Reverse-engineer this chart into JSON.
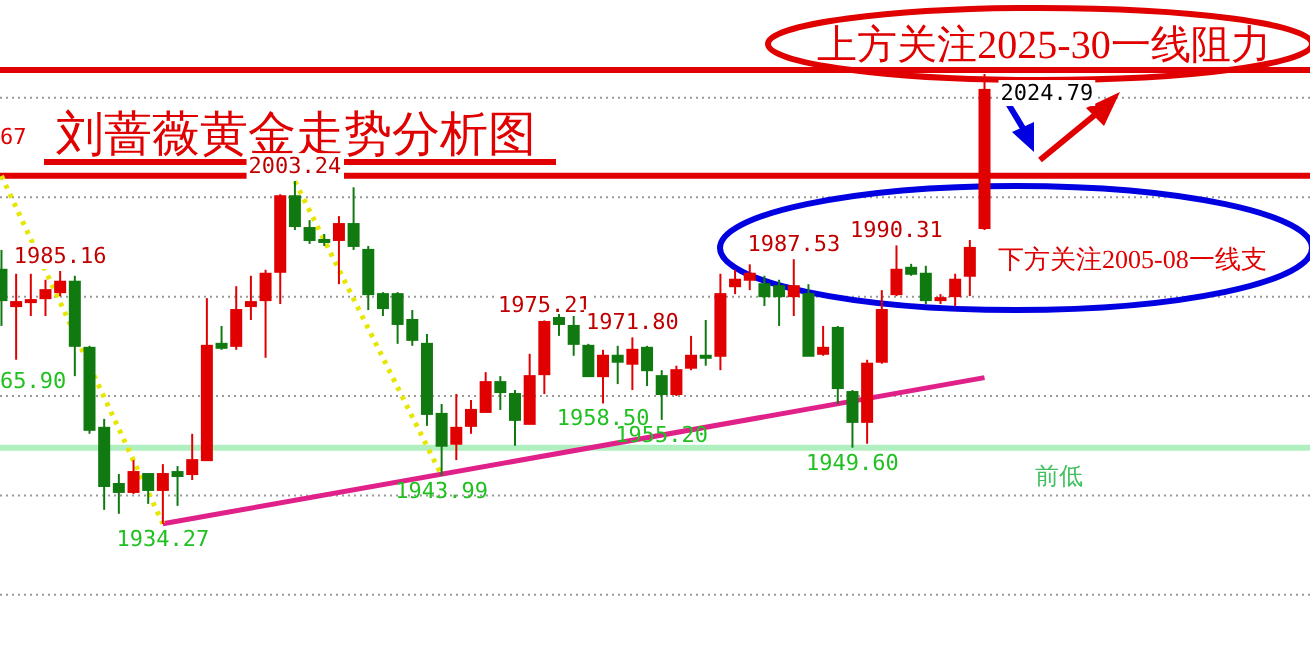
{
  "chart_data": {
    "type": "candlestick",
    "title": "刘蔷薇黄金走势分析图",
    "categories": [
      null,
      null,
      null,
      null,
      null,
      null,
      null,
      null,
      null,
      null,
      null,
      null,
      null,
      null,
      null,
      null,
      null,
      null,
      null,
      null,
      null,
      null,
      null,
      null,
      null,
      null,
      null,
      null,
      null,
      null,
      null,
      null,
      null,
      null,
      null,
      null,
      null,
      null,
      null,
      null,
      null,
      null,
      null,
      null,
      null,
      null,
      null,
      null,
      null,
      null,
      null,
      null,
      null,
      null,
      null,
      null,
      null,
      null,
      null,
      null,
      null,
      null,
      null,
      null,
      null,
      null,
      null,
      null
    ],
    "yticks": [
      {
        "value": 1920,
        "label": null
      },
      {
        "value": 1940,
        "label": null
      },
      {
        "value": 1960,
        "label": null
      },
      {
        "value": 1980,
        "label": null
      },
      {
        "value": 2000,
        "label": null
      },
      {
        "value": 2020,
        "label": null
      }
    ],
    "grid": "y",
    "ohlc": [
      [
        1985.4,
        1989.4,
        1974.1,
        1979.3
      ],
      [
        1978.1,
        1984.6,
        1967.3,
        1978.9
      ],
      [
        1978.9,
        1984.6,
        1976.1,
        1979.3
      ],
      [
        1979.7,
        1983.4,
        1976.1,
        1981.3
      ],
      [
        1980.9,
        1985.16,
        1980.1,
        1983.0
      ],
      [
        1983.0,
        1984.2,
        1964.0,
        1970.1
      ],
      [
        1969.7,
        1970.1,
        1952.4,
        1953.2
      ],
      [
        1953.6,
        1955.4,
        1937.1,
        1941.9
      ],
      [
        1942.3,
        1944.3,
        1936.3,
        1940.7
      ],
      [
        1940.7,
        1947.1,
        1940.3,
        1944.7
      ],
      [
        1944.3,
        1944.3,
        1938.3,
        1941.1
      ],
      [
        1941.1,
        1946.3,
        1934.27,
        1944.3
      ],
      [
        1944.7,
        1945.9,
        1937.9,
        1943.9
      ],
      [
        1944.3,
        1952.4,
        1943.1,
        1947.1
      ],
      [
        1947.1,
        1979.7,
        1947.1,
        1970.1
      ],
      [
        1970.5,
        1974.1,
        1969.3,
        1969.7
      ],
      [
        1970.1,
        1982.1,
        1969.3,
        1977.3
      ],
      [
        1978.1,
        1984.2,
        1975.3,
        1978.9
      ],
      [
        1979.3,
        1985.4,
        1967.7,
        1984.6
      ],
      [
        1985.0,
        2000.6,
        1978.5,
        2000.2
      ],
      [
        2000.2,
        2003.24,
        1993.4,
        1994.2
      ],
      [
        1993.8,
        1995.4,
        1990.6,
        1991.4
      ],
      [
        1991.4,
        1992.6,
        1990.2,
        1991.0
      ],
      [
        1991.4,
        1996.2,
        1982.5,
        1994.6
      ],
      [
        1994.6,
        2002.0,
        1989.4,
        1990.2
      ],
      [
        1989.4,
        1990.2,
        1977.3,
        1980.5
      ],
      [
        1980.5,
        1980.9,
        1976.1,
        1977.7
      ],
      [
        1980.5,
        1980.9,
        1970.5,
        1974.5
      ],
      [
        1975.3,
        1977.3,
        1970.1,
        1971.3
      ],
      [
        1970.5,
        1972.5,
        1954.0,
        1956.4
      ],
      [
        1956.4,
        1958.4,
        1943.99,
        1950.0
      ],
      [
        1950.4,
        1960.4,
        1947.1,
        1953.6
      ],
      [
        1954.0,
        1959.2,
        1952.4,
        1957.2
      ],
      [
        1956.8,
        1964.8,
        1956.8,
        1962.8
      ],
      [
        1962.8,
        1964.0,
        1957.2,
        1960.8
      ],
      [
        1960.4,
        1961.2,
        1950.0,
        1955.2
      ],
      [
        1954.4,
        1968.5,
        1954.4,
        1964.0
      ],
      [
        1964.4,
        1975.21,
        1960.4,
        1974.9
      ],
      [
        1975.7,
        1976.5,
        1972.1,
        1974.5
      ],
      [
        1974.1,
        1976.1,
        1968.1,
        1970.5
      ],
      [
        1970.1,
        1970.5,
        1964.0,
        1964.0
      ],
      [
        1964.0,
        1969.3,
        1958.5,
        1968.1
      ],
      [
        1968.1,
        1970.1,
        1962.4,
        1966.9
      ],
      [
        1966.5,
        1971.8,
        1961.2,
        1969.3
      ],
      [
        1969.7,
        1970.1,
        1962.0,
        1965.2
      ],
      [
        1964.0,
        1965.2,
        1955.2,
        1960.4
      ],
      [
        1960.4,
        1966.1,
        1960.0,
        1965.2
      ],
      [
        1965.7,
        1972.1,
        1965.2,
        1968.1
      ],
      [
        1968.1,
        1975.3,
        1966.1,
        1967.7
      ],
      [
        1968.1,
        1984.6,
        1965.2,
        1980.5
      ],
      [
        1982.1,
        1985.4,
        1980.5,
        1983.4
      ],
      [
        1983.4,
        1986.5,
        1981.3,
        1984.6
      ],
      [
        1982.5,
        1984.2,
        1978.1,
        1980.1
      ],
      [
        1982.1,
        1983.4,
        1974.1,
        1980.1
      ],
      [
        1980.1,
        1987.53,
        1976.1,
        1982.1
      ],
      [
        1980.5,
        1982.5,
        1968.1,
        1968.1
      ],
      [
        1968.5,
        1974.1,
        1968.1,
        1969.7
      ],
      [
        1973.7,
        1974.1,
        1958.4,
        1961.6
      ],
      [
        1960.8,
        1961.2,
        1949.6,
        1954.8
      ],
      [
        1954.8,
        1967.3,
        1950.4,
        1966.5
      ],
      [
        1966.9,
        1981.3,
        1966.5,
        1977.3
      ],
      [
        1980.5,
        1990.31,
        1980.1,
        1985.4
      ],
      [
        1985.8,
        1986.6,
        1984.2,
        1984.6
      ],
      [
        1984.6,
        1986.2,
        1978.5,
        1979.3
      ],
      [
        1979.3,
        1980.5,
        1978.5,
        1979.7
      ],
      [
        1980.1,
        1984.6,
        1978.1,
        1983.4
      ],
      [
        1984.2,
        1991.4,
        1980.1,
        1989.8
      ],
      [
        1993.8,
        2024.79,
        1993.4,
        2021.6
      ]
    ],
    "series": [
      {
        "type": "line",
        "color": "#e0218a",
        "values": [
          null,
          null,
          null,
          null,
          null,
          null,
          null,
          null,
          null,
          null,
          null,
          1934.3,
          null,
          null,
          null,
          null,
          null,
          null,
          null,
          null,
          null,
          null,
          null,
          null,
          null,
          null,
          null,
          null,
          null,
          null,
          null,
          null,
          null,
          null,
          null,
          null,
          null,
          null,
          null,
          null,
          null,
          null,
          null,
          null,
          null,
          null,
          null,
          null,
          null,
          null,
          null,
          null,
          null,
          null,
          null,
          null,
          null,
          null,
          null,
          null,
          null,
          null,
          null,
          null,
          null,
          null,
          null,
          1963.7
        ]
      },
      {
        "type": "line",
        "color": "#e6e600",
        "line_style": "dotted",
        "values": [
          2004.3,
          null,
          null,
          null,
          null,
          null,
          null,
          null,
          null,
          null,
          null,
          1934.3,
          null,
          null,
          null,
          null,
          null,
          null,
          null,
          null,
          null,
          null,
          null,
          null,
          null,
          null,
          null,
          null,
          null,
          null,
          null,
          null,
          null,
          null,
          null,
          null,
          null,
          null,
          null,
          null,
          null,
          null,
          null,
          null,
          null,
          null,
          null,
          null,
          null,
          null,
          null,
          null,
          null,
          null,
          null,
          null,
          null,
          null,
          null,
          null,
          null,
          null,
          null,
          null,
          null,
          null,
          null,
          null
        ]
      },
      {
        "type": "line",
        "color": "#e6e600",
        "line_style": "dotted",
        "values": [
          null,
          null,
          null,
          null,
          null,
          null,
          null,
          null,
          null,
          null,
          null,
          null,
          null,
          null,
          null,
          null,
          null,
          null,
          null,
          null,
          2003.2,
          null,
          null,
          null,
          null,
          null,
          null,
          null,
          null,
          null,
          1944.0,
          null,
          null,
          null,
          null,
          null,
          null,
          null,
          null,
          null,
          null,
          null,
          null,
          null,
          null,
          null,
          null,
          null,
          null,
          null,
          null,
          null,
          null,
          null,
          null,
          null,
          null,
          null,
          null,
          null,
          null,
          null,
          null,
          null,
          null,
          null,
          null,
          null
        ]
      }
    ],
    "ref_lines": [
      {
        "axis": "y",
        "value": 2004.3,
        "color": "#e00000"
      },
      {
        "axis": "y",
        "value": 2025.6,
        "color": "#e00000"
      },
      {
        "axis": "y",
        "value": 1949.6,
        "label": "前低",
        "color": "#b0f0c0"
      }
    ],
    "annotations": [
      "上方关注2025-30一线阻力",
      "下方关注2005-08一线支",
      "67",
      "65.90",
      {
        "text": "1985.16",
        "y": 1985.16
      },
      {
        "text": "2003.24",
        "y": 2003.24
      },
      {
        "text": "1934.27",
        "y": 1934.27
      },
      {
        "text": "1943.99",
        "y": 1943.99
      },
      {
        "text": "1975.21",
        "y": 1975.21
      },
      {
        "text": "1971.80",
        "y": 1971.8
      },
      {
        "text": "1958.50",
        "y": 1958.5
      },
      {
        "text": "1955.20",
        "y": 1955.2
      },
      {
        "text": "1987.53",
        "y": 1987.53
      },
      {
        "text": "1990.31",
        "y": 1990.31
      },
      {
        "text": "1949.60",
        "y": 1949.6
      },
      {
        "text": "2024.79",
        "y": 2024.79
      }
    ]
  }
}
